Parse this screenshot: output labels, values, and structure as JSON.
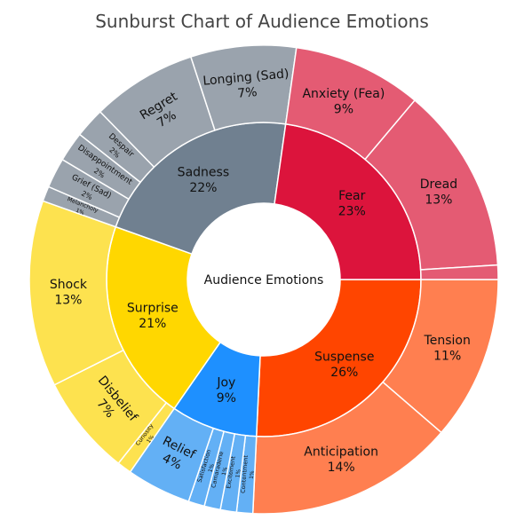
{
  "chart_data": {
    "type": "sunburst",
    "title": "Sunburst Chart of Audience Emotions",
    "root": "Audience Emotions",
    "children": [
      {
        "name": "Suspense",
        "value": 26,
        "label": "26%",
        "color": "#ff4500",
        "children": [
          {
            "name": "Tension",
            "value": 11,
            "label": "11%",
            "color": "#ff7f50"
          },
          {
            "name": "Anticipation",
            "value": 14,
            "label": "14%",
            "color": "#ff7f50"
          }
        ]
      },
      {
        "name": "Joy",
        "value": 9,
        "label": "9%",
        "color": "#1e90ff",
        "children": [
          {
            "name": "Contentment",
            "value": 1,
            "label": "1%",
            "color": "#63b0f5"
          },
          {
            "name": "Excitement",
            "value": 1,
            "label": "1%",
            "color": "#63b0f5"
          },
          {
            "name": "Camaraderie",
            "value": 1,
            "label": "1%",
            "color": "#63b0f5"
          },
          {
            "name": "Satisfaction",
            "value": 1,
            "label": "1%",
            "color": "#63b0f5"
          },
          {
            "name": "Relief",
            "value": 4,
            "label": "4%",
            "color": "#63b0f5"
          }
        ]
      },
      {
        "name": "Surprise",
        "value": 21,
        "label": "21%",
        "color": "#ffd700",
        "children": [
          {
            "name": "Curiosity",
            "value": 1,
            "label": "1%",
            "color": "#fde24f"
          },
          {
            "name": "Disbelief",
            "value": 7,
            "label": "7%",
            "color": "#fde24f"
          },
          {
            "name": "Shock",
            "value": 13,
            "label": "13%",
            "color": "#fde24f"
          }
        ]
      },
      {
        "name": "Sadness",
        "value": 22,
        "label": "22%",
        "color": "#708090",
        "children": [
          {
            "name": "Melancholy",
            "value": 1,
            "label": "1%",
            "color": "#9aa3ad"
          },
          {
            "name": "Grief (Sad)",
            "value": 2,
            "label": "2%",
            "color": "#9aa3ad"
          },
          {
            "name": "Disappointment",
            "value": 2,
            "label": "2%",
            "color": "#9aa3ad"
          },
          {
            "name": "Despair",
            "value": 2,
            "label": "2%",
            "color": "#9aa3ad"
          },
          {
            "name": "Regret",
            "value": 7,
            "label": "7%",
            "color": "#9aa3ad"
          },
          {
            "name": "Longing (Sad)",
            "value": 7,
            "label": "7%",
            "color": "#9aa3ad"
          }
        ]
      },
      {
        "name": "Fear",
        "value": 23,
        "label": "23%",
        "color": "#dc143c",
        "children": [
          {
            "name": "Anxiety (Fea)",
            "value": 9,
            "label": "9%",
            "color": "#e45b73"
          },
          {
            "name": "Dread",
            "value": 13,
            "label": "13%",
            "color": "#e45b73"
          },
          {
            "name": "",
            "value": 1,
            "label": "",
            "color": "#e45b73"
          }
        ]
      }
    ],
    "start_angle_deg": 0,
    "direction": "clockwise"
  }
}
